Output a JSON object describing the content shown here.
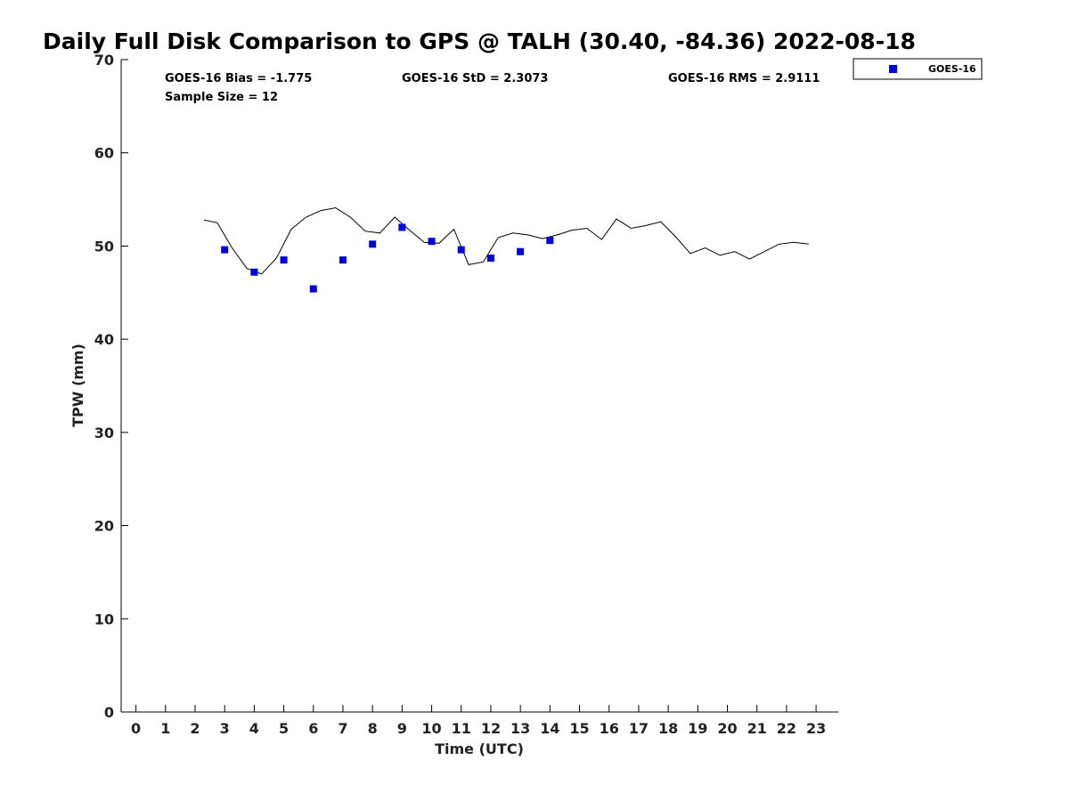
{
  "chart_data": {
    "type": "scatter",
    "title": "Daily Full Disk Comparison to GPS @ TALH (30.40, -84.36) 2022-08-18",
    "xlabel": "Time (UTC)",
    "ylabel": "TPW (mm)",
    "xlim": [
      -0.5,
      23.75
    ],
    "ylim": [
      0,
      70
    ],
    "xticks": [
      "0",
      "1",
      "2",
      "3",
      "4",
      "5",
      "6",
      "7",
      "8",
      "9",
      "10",
      "11",
      "12",
      "13",
      "14",
      "15",
      "16",
      "17",
      "18",
      "19",
      "20",
      "21",
      "22",
      "23"
    ],
    "yticks": [
      "0",
      "10",
      "20",
      "30",
      "40",
      "50",
      "60",
      "70"
    ],
    "grid": false,
    "legend_position": "top-right",
    "stats": {
      "bias": "GOES-16 Bias = -1.775",
      "std": "GOES-16 StD = 2.3073",
      "rms": "GOES-16 RMS = 2.9111",
      "sample": "Sample Size = 12"
    },
    "gps_line": {
      "color": "#000000",
      "x": [
        2.3,
        2.75,
        3.25,
        3.75,
        4.25,
        4.75,
        5.25,
        5.75,
        6.25,
        6.75,
        7.25,
        7.75,
        8.25,
        8.75,
        9.25,
        9.75,
        10.25,
        10.75,
        11.25,
        11.75,
        12.25,
        12.75,
        13.25,
        13.75,
        14.25,
        14.75,
        15.25,
        15.75,
        16.25,
        16.75,
        17.25,
        17.75,
        18.25,
        18.75,
        19.25,
        19.75,
        20.25,
        20.75,
        21.25,
        21.75,
        22.25,
        22.75
      ],
      "y": [
        52.8,
        52.5,
        49.8,
        47.6,
        47.0,
        48.7,
        51.8,
        53.1,
        53.8,
        54.1,
        53.1,
        51.6,
        51.4,
        53.1,
        51.7,
        50.4,
        50.3,
        51.8,
        48.0,
        48.3,
        50.9,
        51.4,
        51.2,
        50.8,
        51.2,
        51.7,
        51.9,
        50.7,
        52.9,
        51.9,
        52.2,
        52.6,
        51.0,
        49.2,
        49.8,
        49.0,
        49.4,
        48.6,
        49.4,
        50.2,
        50.4,
        50.2
      ]
    },
    "series": [
      {
        "name": "GOES-16",
        "color": "#0000dd",
        "marker": "square",
        "x": [
          3,
          4,
          5,
          6,
          7,
          8,
          9,
          10,
          11,
          12,
          13,
          14
        ],
        "y": [
          49.6,
          47.2,
          48.5,
          45.4,
          48.5,
          50.2,
          52.0,
          50.5,
          49.6,
          48.7,
          49.4,
          50.6
        ]
      }
    ]
  }
}
